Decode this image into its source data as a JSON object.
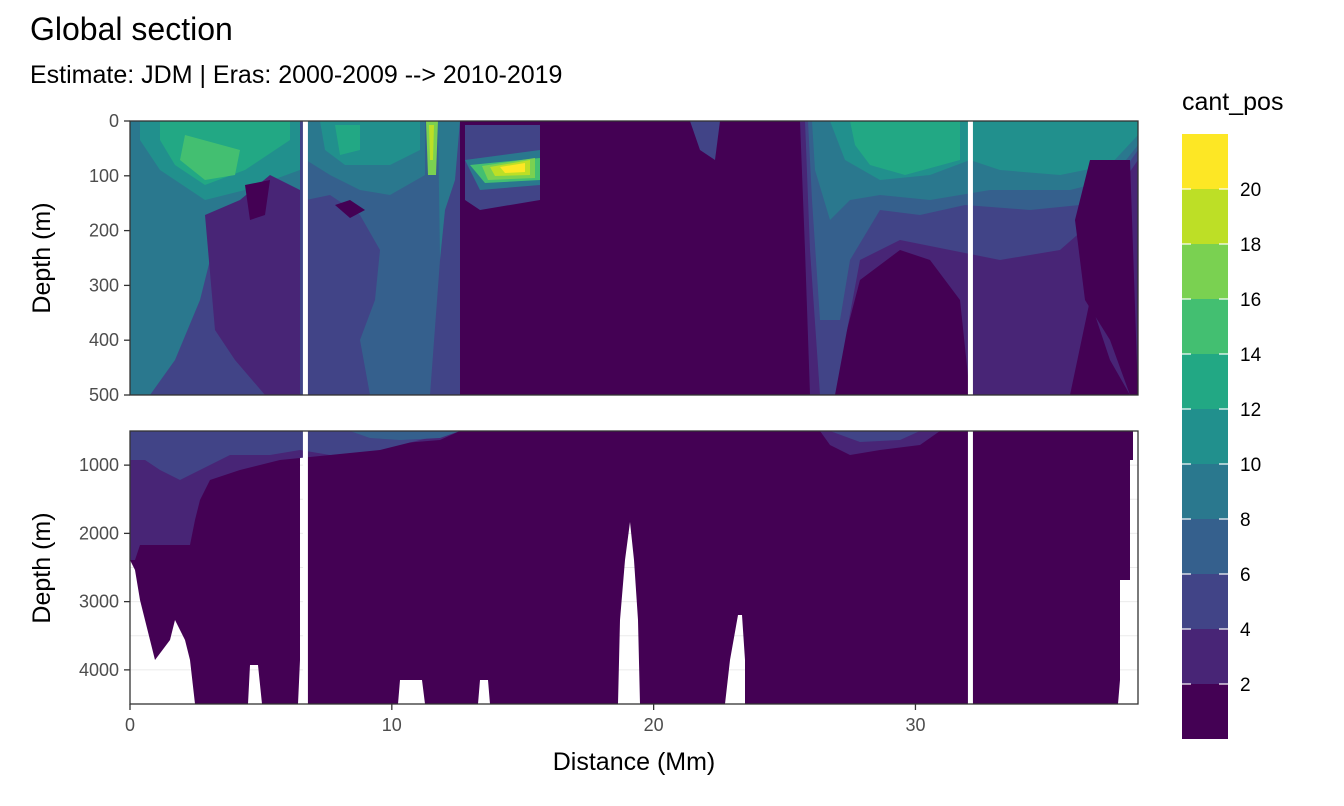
{
  "title": "Global section",
  "subtitle": "Estimate: JDM  | Eras: 2000-2009 --> 2010-2019",
  "chart_data": {
    "type": "heatmap",
    "title": "Global section",
    "subtitle": "Estimate: JDM  | Eras: 2000-2009 --> 2010-2019",
    "xlabel": "Distance (Mm)",
    "ylabel": "Depth (m)",
    "xlim": [
      0,
      38.5
    ],
    "x_ticks": [
      0,
      10,
      20,
      30
    ],
    "legend": {
      "title": "cant_pos",
      "position": "right",
      "breaks": [
        0,
        2,
        4,
        6,
        8,
        10,
        12,
        14,
        16,
        18,
        20,
        22
      ],
      "labels": [
        "2",
        "4",
        "6",
        "8",
        "10",
        "12",
        "14",
        "16",
        "18",
        "20"
      ],
      "colors": [
        "#440154",
        "#482576",
        "#414487",
        "#35608d",
        "#2a788e",
        "#21908d",
        "#22a884",
        "#43bf71",
        "#7ad151",
        "#bddf26",
        "#fde725"
      ]
    },
    "gaps_mm": [
      6.7,
      32.1
    ],
    "panels": [
      {
        "name": "upper",
        "ylim": [
          500,
          0
        ],
        "y_ticks": [
          0,
          100,
          200,
          300,
          400,
          500
        ],
        "fields": [
          {
            "x": [
              0,
              5
            ],
            "depth": [
              0,
              500
            ],
            "value": 7
          },
          {
            "x": [
              1,
              4
            ],
            "depth": [
              40,
              140
            ],
            "value": 13
          },
          {
            "x": [
              2,
              6
            ],
            "depth": [
              150,
              500
            ],
            "value": 3
          },
          {
            "x": [
              6.7,
              11
            ],
            "depth": [
              0,
              500
            ],
            "value": 6
          },
          {
            "x": [
              7.5,
              10
            ],
            "depth": [
              0,
              100
            ],
            "value": 11
          },
          {
            "x": [
              11.5,
              11.9
            ],
            "depth": [
              0,
              120
            ],
            "value": 17
          },
          {
            "x": [
              13.8,
              15.2
            ],
            "depth": [
              60,
              110
            ],
            "value": 19
          },
          {
            "x": [
              15.8,
              26
            ],
            "depth": [
              0,
              500
            ],
            "value": 1
          },
          {
            "x": [
              26,
              30
            ],
            "depth": [
              0,
              500
            ],
            "value": 6
          },
          {
            "x": [
              27.5,
              31
            ],
            "depth": [
              0,
              130
            ],
            "value": 13
          },
          {
            "x": [
              32.3,
              36.5
            ],
            "depth": [
              0,
              150
            ],
            "value": 10
          },
          {
            "x": [
              32.3,
              38.5
            ],
            "depth": [
              150,
              500
            ],
            "value": 1
          }
        ]
      },
      {
        "name": "lower",
        "ylim": [
          4500,
          500
        ],
        "y_ticks": [
          1000,
          2000,
          3000,
          4000
        ],
        "fields": [
          {
            "x": [
              0,
              38.5
            ],
            "depth": [
              500,
              4500
            ],
            "value": 1
          },
          {
            "x": [
              0,
              2.5
            ],
            "depth": [
              500,
              2000
            ],
            "value": 3
          },
          {
            "x": [
              0,
              12
            ],
            "depth": [
              500,
              900
            ],
            "value": 5
          }
        ]
      }
    ]
  }
}
